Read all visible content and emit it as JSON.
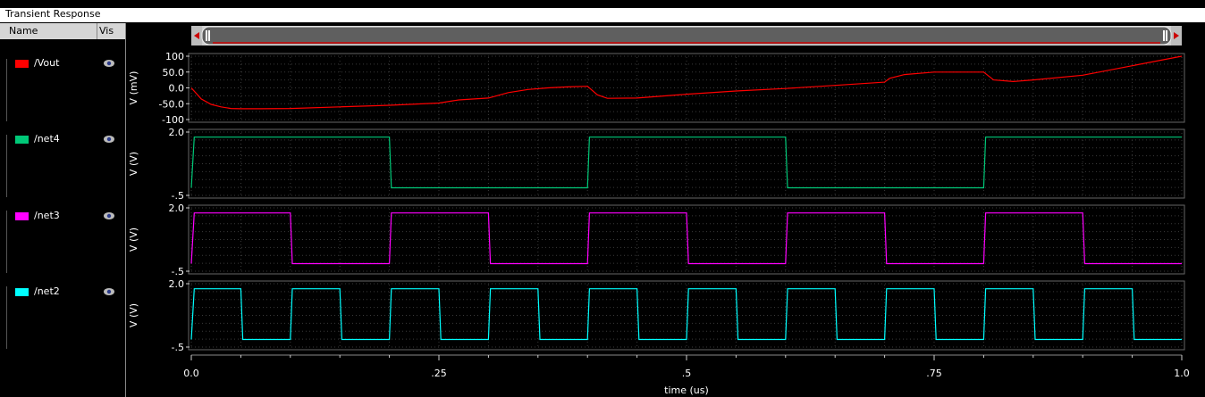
{
  "window": {
    "title": "Transient Response"
  },
  "signal_list": {
    "headers": {
      "name": "Name",
      "visible": "Vis"
    },
    "signals": [
      {
        "name": "/Vout",
        "color": "#ff0000"
      },
      {
        "name": "/net4",
        "color": "#00c878"
      },
      {
        "name": "/net3",
        "color": "#ff00ff"
      },
      {
        "name": "/net2",
        "color": "#00ffff"
      }
    ]
  },
  "x_axis": {
    "label": "time (us)",
    "ticks": [
      "0.0",
      ".25",
      ".5",
      ".75",
      "1.0"
    ]
  },
  "chart_data": [
    {
      "type": "line",
      "series": [
        {
          "name": "/Vout",
          "color": "#ff0000"
        }
      ],
      "ylabel": "V (mV)",
      "ytick_labels": [
        "100",
        "50.0",
        "0.0",
        "-50.0",
        "-100"
      ],
      "yticks": [
        100,
        50,
        0,
        -50,
        -100
      ],
      "ylim": [
        -100,
        100
      ],
      "xlim": [
        0,
        1.0
      ],
      "grid": true,
      "x": [
        0.0,
        0.01,
        0.02,
        0.03,
        0.04,
        0.05,
        0.07,
        0.1,
        0.15,
        0.2,
        0.25,
        0.27,
        0.3,
        0.32,
        0.34,
        0.36,
        0.38,
        0.4,
        0.41,
        0.42,
        0.45,
        0.5,
        0.55,
        0.6,
        0.65,
        0.7,
        0.705,
        0.72,
        0.75,
        0.8,
        0.81,
        0.83,
        0.85,
        0.9,
        0.95,
        1.0
      ],
      "values": [
        0,
        -35,
        -52,
        -60,
        -65,
        -66,
        -66,
        -65,
        -60,
        -55,
        -48,
        -38,
        -32,
        -15,
        -5,
        0,
        3,
        5,
        -22,
        -33,
        -32,
        -20,
        -10,
        -2,
        8,
        18,
        30,
        42,
        50,
        50,
        25,
        20,
        25,
        40,
        70,
        100
      ]
    },
    {
      "type": "line",
      "series": [
        {
          "name": "/net4",
          "color": "#00c878"
        }
      ],
      "ylabel": "V (V)",
      "ytick_labels": [
        "2.0",
        "-.5"
      ],
      "yticks": [
        2.0,
        -0.5
      ],
      "ylim": [
        -0.5,
        2.0
      ],
      "xlim": [
        0,
        1.0
      ],
      "grid": true,
      "x": [
        0.0,
        0.003,
        0.2,
        0.202,
        0.4,
        0.402,
        0.6,
        0.602,
        0.8,
        0.802,
        1.0
      ],
      "values": [
        -0.2,
        1.8,
        1.8,
        -0.2,
        -0.2,
        1.8,
        1.8,
        -0.2,
        -0.2,
        1.8,
        1.8
      ]
    },
    {
      "type": "line",
      "series": [
        {
          "name": "/net3",
          "color": "#ff00ff"
        }
      ],
      "ylabel": "V (V)",
      "ytick_labels": [
        "2.0",
        "-.5"
      ],
      "yticks": [
        2.0,
        -0.5
      ],
      "ylim": [
        -0.5,
        2.0
      ],
      "xlim": [
        0,
        1.0
      ],
      "grid": true,
      "x": [
        0.0,
        0.003,
        0.1,
        0.102,
        0.2,
        0.202,
        0.3,
        0.302,
        0.4,
        0.402,
        0.5,
        0.502,
        0.6,
        0.602,
        0.7,
        0.702,
        0.8,
        0.802,
        0.9,
        0.902,
        1.0
      ],
      "values": [
        -0.2,
        1.8,
        1.8,
        -0.2,
        -0.2,
        1.8,
        1.8,
        -0.2,
        -0.2,
        1.8,
        1.8,
        -0.2,
        -0.2,
        1.8,
        1.8,
        -0.2,
        -0.2,
        1.8,
        1.8,
        -0.2,
        -0.2
      ]
    },
    {
      "type": "line",
      "series": [
        {
          "name": "/net2",
          "color": "#00ffff"
        }
      ],
      "ylabel": "V (V)",
      "ytick_labels": [
        "2.0",
        "-.5"
      ],
      "yticks": [
        2.0,
        -0.5
      ],
      "ylim": [
        -0.5,
        2.0
      ],
      "xlim": [
        0,
        1.0
      ],
      "grid": true,
      "x": [
        0.0,
        0.003,
        0.05,
        0.052,
        0.1,
        0.102,
        0.15,
        0.152,
        0.2,
        0.202,
        0.25,
        0.252,
        0.3,
        0.302,
        0.35,
        0.352,
        0.4,
        0.402,
        0.45,
        0.452,
        0.5,
        0.502,
        0.55,
        0.552,
        0.6,
        0.602,
        0.65,
        0.652,
        0.7,
        0.702,
        0.75,
        0.752,
        0.8,
        0.802,
        0.85,
        0.852,
        0.9,
        0.902,
        0.95,
        0.952,
        1.0
      ],
      "values": [
        -0.2,
        1.8,
        1.8,
        -0.2,
        -0.2,
        1.8,
        1.8,
        -0.2,
        -0.2,
        1.8,
        1.8,
        -0.2,
        -0.2,
        1.8,
        1.8,
        -0.2,
        -0.2,
        1.8,
        1.8,
        -0.2,
        -0.2,
        1.8,
        1.8,
        -0.2,
        -0.2,
        1.8,
        1.8,
        -0.2,
        -0.2,
        1.8,
        1.8,
        -0.2,
        -0.2,
        1.8,
        1.8,
        -0.2,
        -0.2,
        1.8,
        1.8,
        -0.2,
        -0.2
      ]
    }
  ]
}
